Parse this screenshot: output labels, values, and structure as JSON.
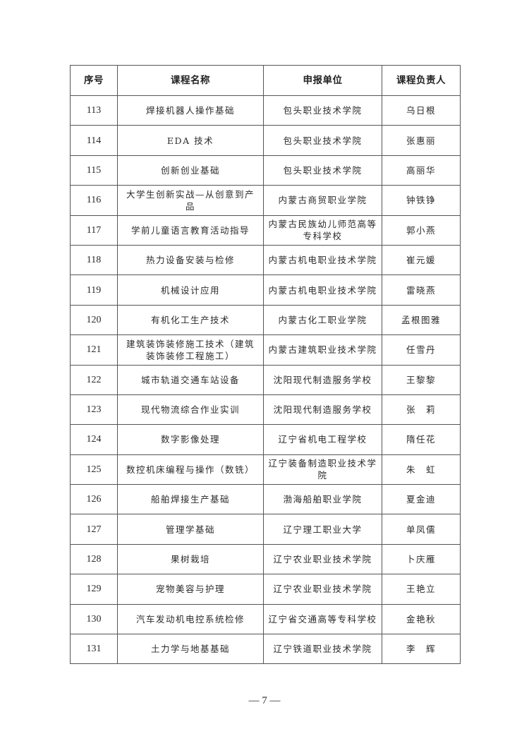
{
  "table": {
    "headers": [
      "序号",
      "课程名称",
      "申报单位",
      "课程负责人"
    ],
    "rows": [
      [
        "113",
        "焊接机器人操作基础",
        "包头职业技术学院",
        "乌日根"
      ],
      [
        "114",
        "EDA 技术",
        "包头职业技术学院",
        "张惠丽"
      ],
      [
        "115",
        "创新创业基础",
        "包头职业技术学院",
        "高丽华"
      ],
      [
        "116",
        "大学生创新实战—从创意到产品",
        "内蒙古商贸职业学院",
        "钟铁铮"
      ],
      [
        "117",
        "学前儿童语言教育活动指导",
        "内蒙古民族幼儿师范高等专科学校",
        "郭小燕"
      ],
      [
        "118",
        "热力设备安装与检修",
        "内蒙古机电职业技术学院",
        "崔元媛"
      ],
      [
        "119",
        "机械设计应用",
        "内蒙古机电职业技术学院",
        "雷晓燕"
      ],
      [
        "120",
        "有机化工生产技术",
        "内蒙古化工职业学院",
        "孟根图雅"
      ],
      [
        "121",
        "建筑装饰装修施工技术（建筑装饰装修工程施工）",
        "内蒙古建筑职业技术学院",
        "任雪丹"
      ],
      [
        "122",
        "城市轨道交通车站设备",
        "沈阳现代制造服务学校",
        "王黎黎"
      ],
      [
        "123",
        "现代物流综合作业实训",
        "沈阳现代制造服务学校",
        "张　莉"
      ],
      [
        "124",
        "数字影像处理",
        "辽宁省机电工程学校",
        "隋任花"
      ],
      [
        "125",
        "数控机床编程与操作（数铣）",
        "辽宁装备制造职业技术学院",
        "朱　虹"
      ],
      [
        "126",
        "船舶焊接生产基础",
        "渤海船舶职业学院",
        "夏金迪"
      ],
      [
        "127",
        "管理学基础",
        "辽宁理工职业大学",
        "单凤儒"
      ],
      [
        "128",
        "果树栽培",
        "辽宁农业职业技术学院",
        "卜庆雁"
      ],
      [
        "129",
        "宠物美容与护理",
        "辽宁农业职业技术学院",
        "王艳立"
      ],
      [
        "130",
        "汽车发动机电控系统检修",
        "辽宁省交通高等专科学校",
        "金艳秋"
      ],
      [
        "131",
        "土力学与地基基础",
        "辽宁铁道职业技术学院",
        "李　辉"
      ]
    ]
  },
  "page_number": "— 7 —"
}
